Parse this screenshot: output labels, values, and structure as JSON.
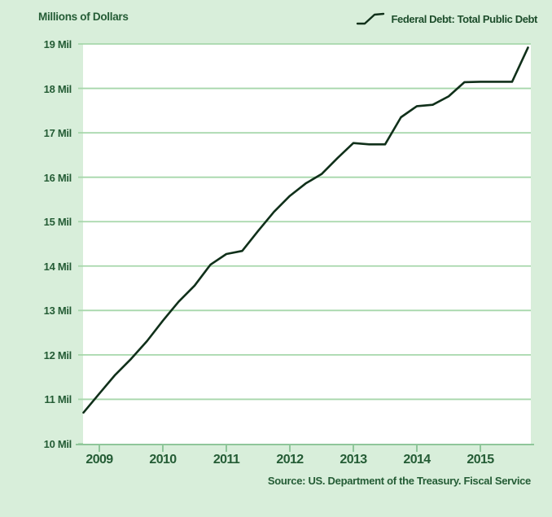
{
  "title": "Millions of Dollars",
  "legend": {
    "label": "Federal Debt: Total Public Debt"
  },
  "source": "Source: US. Department of the Treasury. Fiscal Service",
  "colors": {
    "background": "#d8eeda",
    "plot_background": "#ffffff",
    "gridline": "#a7d7ab",
    "axis": "#8fc69a",
    "line": "#10301a",
    "text": "#245c35"
  },
  "chart_data": {
    "type": "line",
    "title": "Millions of Dollars",
    "ylabel": "Millions of Dollars",
    "xlabel": "",
    "ylim": [
      10,
      19
    ],
    "grid": "horizontal",
    "legend_position": "top-right",
    "xticks": [
      "2009",
      "2010",
      "2011",
      "2012",
      "2013",
      "2014",
      "2015"
    ],
    "yticks": [
      {
        "value": 19,
        "label": "19 Mil"
      },
      {
        "value": 18,
        "label": "18 Mil"
      },
      {
        "value": 17,
        "label": "17 Mil"
      },
      {
        "value": 16,
        "label": "16 Mil"
      },
      {
        "value": 15,
        "label": "15 Mil"
      },
      {
        "value": 14,
        "label": "14 Mil"
      },
      {
        "value": 13,
        "label": "13 Mil"
      },
      {
        "value": 12,
        "label": "12 Mil"
      },
      {
        "value": 11,
        "label": "11 Mil"
      },
      {
        "value": 10,
        "label": "10 Mil"
      }
    ],
    "series": [
      {
        "name": "Federal Debt: Total Public Debt",
        "x": [
          "2008-10",
          "2009-01",
          "2009-04",
          "2009-07",
          "2009-10",
          "2010-01",
          "2010-04",
          "2010-07",
          "2010-10",
          "2011-01",
          "2011-04",
          "2011-07",
          "2011-10",
          "2012-01",
          "2012-04",
          "2012-07",
          "2012-10",
          "2013-01",
          "2013-04",
          "2013-07",
          "2013-10",
          "2014-01",
          "2014-04",
          "2014-07",
          "2014-10",
          "2015-01",
          "2015-04",
          "2015-07",
          "2015-10"
        ],
        "values": [
          10.7,
          11.13,
          11.55,
          11.91,
          12.31,
          12.77,
          13.2,
          13.56,
          14.03,
          14.27,
          14.34,
          14.79,
          15.22,
          15.58,
          15.86,
          16.07,
          16.43,
          16.77,
          16.74,
          16.74,
          17.35,
          17.6,
          17.63,
          17.82,
          18.14,
          18.15,
          18.15,
          18.15,
          18.92
        ]
      }
    ]
  }
}
